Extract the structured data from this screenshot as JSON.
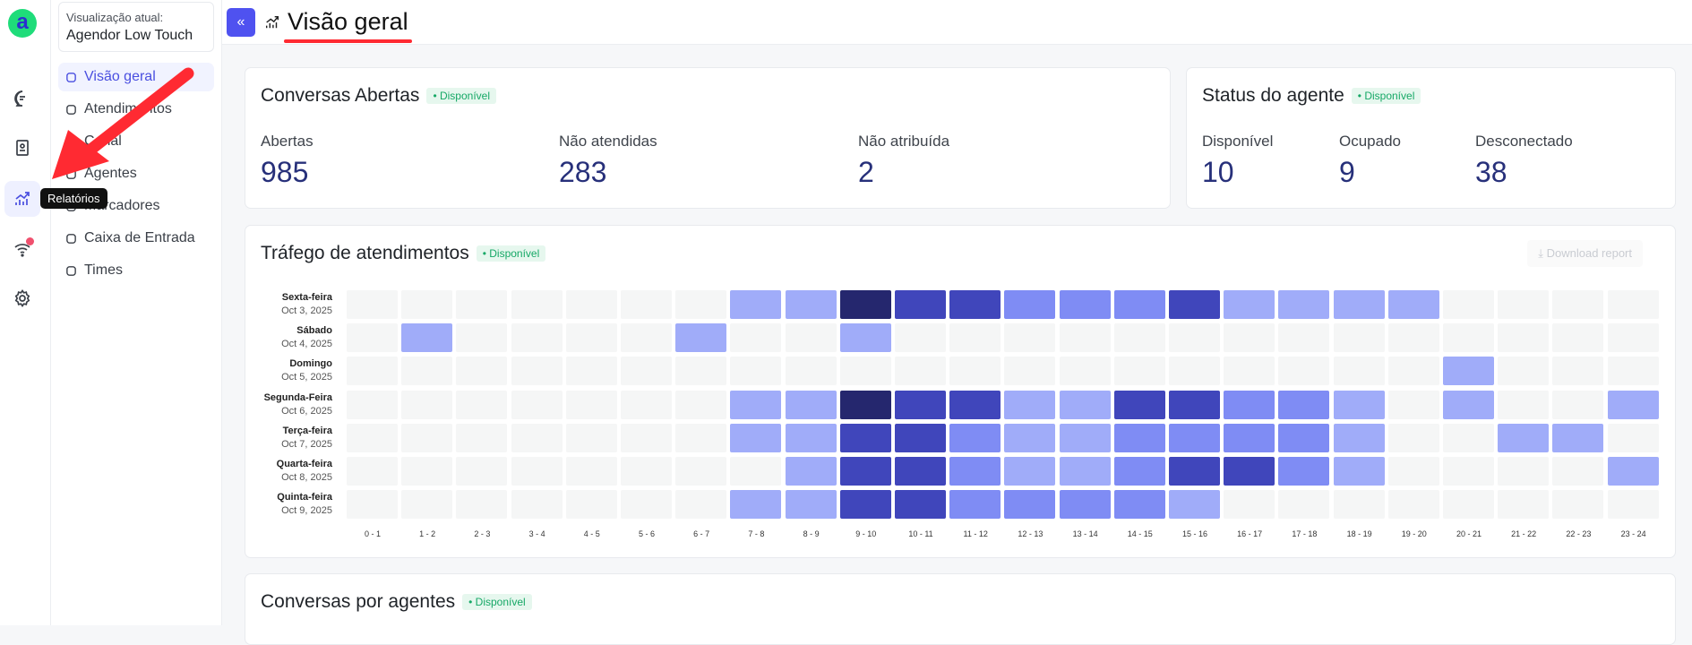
{
  "rail": {
    "logo": "a",
    "tooltip": "Relatórios",
    "icons": [
      "chat-icon",
      "contacts-icon",
      "reports-icon",
      "wifi-icon",
      "settings-icon"
    ]
  },
  "sidebar": {
    "view_label": "Visualização atual:",
    "view_value": "Agendor Low Touch",
    "items": [
      {
        "label": "Visão geral",
        "icon": "chart-icon",
        "active": true
      },
      {
        "label": "Atendimentos",
        "icon": "chat-icon"
      },
      {
        "label": "Canal",
        "icon": "channel-icon"
      },
      {
        "label": "Agentes",
        "icon": "agent-icon"
      },
      {
        "label": "Marcadores",
        "icon": "tag-icon"
      },
      {
        "label": "Caixa de Entrada",
        "icon": "inbox-icon"
      },
      {
        "label": "Times",
        "icon": "team-icon"
      }
    ]
  },
  "header": {
    "title": "Visão geral"
  },
  "open_conversations": {
    "title": "Conversas Abertas",
    "status": "• Disponível",
    "metrics": [
      {
        "label": "Abertas",
        "value": "985"
      },
      {
        "label": "Não atendidas",
        "value": "283"
      },
      {
        "label": "Não atribuída",
        "value": "2"
      }
    ]
  },
  "agent_status": {
    "title": "Status do agente",
    "status": "• Disponível",
    "metrics": [
      {
        "label": "Disponível",
        "value": "10"
      },
      {
        "label": "Ocupado",
        "value": "9"
      },
      {
        "label": "Desconectado",
        "value": "38"
      }
    ]
  },
  "traffic": {
    "title": "Tráfego de atendimentos",
    "status": "• Disponível",
    "download": "Download report"
  },
  "agents_card": {
    "title": "Conversas por agentes",
    "status": "• Disponível"
  },
  "chart_data": {
    "type": "heatmap",
    "rows": [
      {
        "day": "Sexta-feira",
        "date": "Oct 3, 2025"
      },
      {
        "day": "Sábado",
        "date": "Oct 4, 2025"
      },
      {
        "day": "Domingo",
        "date": "Oct 5, 2025"
      },
      {
        "day": "Segunda-Feira",
        "date": "Oct 6, 2025"
      },
      {
        "day": "Terça-feira",
        "date": "Oct 7, 2025"
      },
      {
        "day": "Quarta-feira",
        "date": "Oct 8, 2025"
      },
      {
        "day": "Quinta-feira",
        "date": "Oct 9, 2025"
      }
    ],
    "columns": [
      "0 - 1",
      "1 - 2",
      "2 - 3",
      "3 - 4",
      "4 - 5",
      "5 - 6",
      "6 - 7",
      "7 - 8",
      "8 - 9",
      "9 - 10",
      "10 - 11",
      "11 - 12",
      "12 - 13",
      "13 - 14",
      "14 - 15",
      "15 - 16",
      "16 - 17",
      "17 - 18",
      "18 - 19",
      "19 - 20",
      "20 - 21",
      "21 - 22",
      "22 - 23",
      "23 - 24"
    ],
    "intensity_levels": [
      [
        0,
        0,
        0,
        0,
        0,
        0,
        0,
        1,
        1,
        4,
        3,
        3,
        2,
        2,
        2,
        3,
        1,
        1,
        1,
        1,
        0,
        0,
        0,
        0
      ],
      [
        0,
        1,
        0,
        0,
        0,
        0,
        1,
        0,
        0,
        1,
        0,
        0,
        0,
        0,
        0,
        0,
        0,
        0,
        0,
        0,
        0,
        0,
        0,
        0
      ],
      [
        0,
        0,
        0,
        0,
        0,
        0,
        0,
        0,
        0,
        0,
        0,
        0,
        0,
        0,
        0,
        0,
        0,
        0,
        0,
        0,
        1,
        0,
        0,
        0
      ],
      [
        0,
        0,
        0,
        0,
        0,
        0,
        0,
        1,
        1,
        4,
        3,
        3,
        1,
        1,
        3,
        3,
        2,
        2,
        1,
        0,
        1,
        0,
        0,
        1
      ],
      [
        0,
        0,
        0,
        0,
        0,
        0,
        0,
        1,
        1,
        3,
        3,
        2,
        1,
        1,
        2,
        2,
        2,
        2,
        1,
        0,
        0,
        1,
        1,
        0
      ],
      [
        0,
        0,
        0,
        0,
        0,
        0,
        0,
        0,
        1,
        3,
        3,
        2,
        1,
        1,
        2,
        3,
        3,
        2,
        1,
        0,
        0,
        0,
        0,
        1
      ],
      [
        0,
        0,
        0,
        0,
        0,
        0,
        0,
        1,
        1,
        3,
        3,
        2,
        2,
        2,
        2,
        1,
        0,
        0,
        0,
        0,
        0,
        0,
        0,
        0
      ]
    ],
    "colors": [
      "#f5f6f6",
      "#a0acf9",
      "#7f8cf4",
      "#4046bb",
      "#25276e"
    ]
  },
  "annotation_color": "#ff2a32"
}
